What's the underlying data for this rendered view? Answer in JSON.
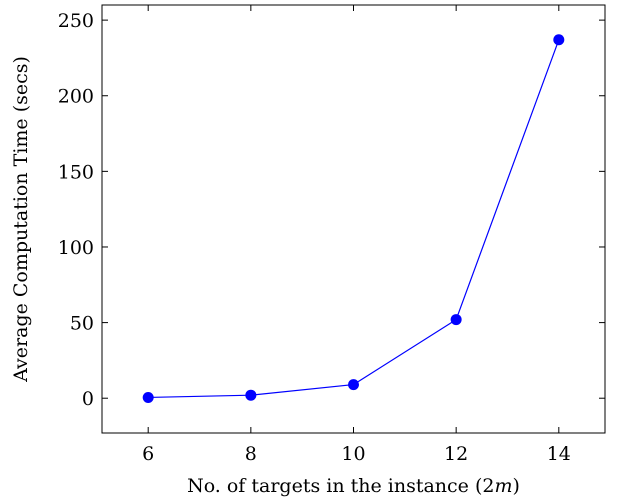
{
  "chart_data": {
    "type": "line",
    "title": "",
    "xlabel_prefix": "No. of targets in the instance (2",
    "xlabel_var": "m",
    "xlabel_suffix": ")",
    "ylabel": "Average Computation Time (secs)",
    "x": [
      6,
      8,
      10,
      12,
      14
    ],
    "series": [
      {
        "values": [
          0.5,
          2,
          9,
          52,
          237
        ]
      }
    ],
    "xticks": [
      6,
      8,
      10,
      12,
      14
    ],
    "yticks": [
      0,
      50,
      100,
      150,
      200,
      250
    ],
    "xlim": [
      5.1,
      14.9
    ],
    "ylim": [
      -23,
      260
    ],
    "grid": false,
    "legend": "none",
    "colors": {
      "series": "#0000ff",
      "axis": "#000000"
    }
  }
}
